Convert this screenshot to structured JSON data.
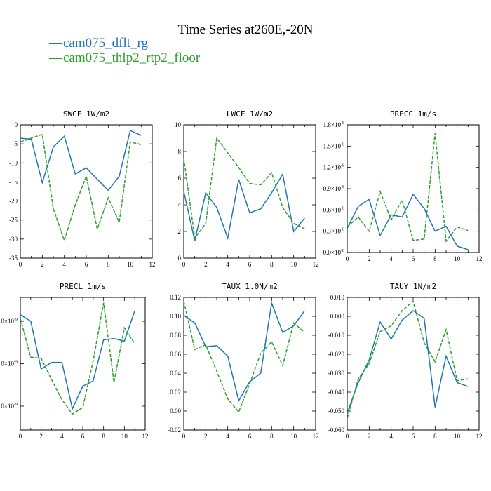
{
  "page": {
    "title": "Time Series at260E,-20N",
    "legend": [
      {
        "marker": "—",
        "label": "cam075_dflt_rg",
        "color": "#1f77b4",
        "dash": "solid"
      },
      {
        "marker": "—",
        "label": "cam075_thlp2_rtp2_floor",
        "color": "#2ca02c",
        "dash": "dashed"
      }
    ]
  },
  "chart_data": [
    {
      "type": "line",
      "title": "SWCF 1W/m2",
      "xlim": [
        0,
        12
      ],
      "ylim": [
        -35,
        0
      ],
      "xticks": [
        0,
        2,
        4,
        6,
        8,
        10,
        12
      ],
      "xtick_labels": [
        "0",
        "2",
        "4",
        "6",
        "8",
        "10",
        "12"
      ],
      "yticks": [
        0,
        -5,
        -10,
        -15,
        -20,
        -25,
        -30,
        -35
      ],
      "ytick_labels": [
        "0",
        "-5",
        "-10",
        "-15",
        "-20",
        "-25",
        "-30",
        "-35"
      ],
      "x": [
        0,
        1,
        2,
        3,
        4,
        5,
        6,
        7,
        8,
        9,
        10,
        11
      ],
      "series": [
        {
          "values": [
            -3.5,
            -3.8,
            -15.2,
            -5.8,
            -3.0,
            -12.9,
            -11.3,
            -14.3,
            -17.2,
            -13.5,
            -1.5,
            -2.8
          ]
        },
        {
          "values": [
            -4.5,
            -3.5,
            -2.5,
            -22.0,
            -30.4,
            -21.0,
            -13.5,
            -27.4,
            -19.2,
            -25.6,
            -4.5,
            -5.2
          ]
        }
      ]
    },
    {
      "type": "line",
      "title": "LWCF 1W/m2",
      "xlim": [
        0,
        12
      ],
      "ylim": [
        0,
        10
      ],
      "xticks": [
        0,
        2,
        4,
        6,
        8,
        10,
        12
      ],
      "xtick_labels": [
        "0",
        "2",
        "4",
        "6",
        "8",
        "10",
        "12"
      ],
      "yticks": [
        0,
        2,
        4,
        6,
        8,
        10
      ],
      "ytick_labels": [
        "0",
        "2",
        "4",
        "6",
        "8",
        "10"
      ],
      "x": [
        0,
        1,
        2,
        3,
        4,
        5,
        6,
        7,
        8,
        9,
        10,
        11
      ],
      "series": [
        {
          "values": [
            5.0,
            1.3,
            4.9,
            3.8,
            1.5,
            5.9,
            3.4,
            3.7,
            4.9,
            6.3,
            2.0,
            3.0
          ]
        },
        {
          "values": [
            7.5,
            1.5,
            2.6,
            9.0,
            7.9,
            6.8,
            5.6,
            5.5,
            6.4,
            3.8,
            2.6,
            2.2
          ]
        }
      ]
    },
    {
      "type": "line",
      "title": "PRECC 1m/s",
      "xlim": [
        0,
        12
      ],
      "ylim": [
        0,
        1.8
      ],
      "y_unit_exponent": "-8",
      "xticks": [
        0,
        2,
        4,
        6,
        8,
        10,
        12
      ],
      "xtick_labels": [
        "0",
        "2",
        "4",
        "6",
        "8",
        "10",
        "12"
      ],
      "yticks": [
        0,
        0.3,
        0.6,
        0.9,
        1.2,
        1.5,
        1.8
      ],
      "ytick_labels": [
        "0.0×10",
        "0.3×10",
        "0.6×10",
        "0.9×10",
        "1.2×10",
        "1.5×10",
        "1.8×10"
      ],
      "x": [
        0,
        1,
        2,
        3,
        4,
        5,
        6,
        7,
        8,
        9,
        10,
        11
      ],
      "series": [
        {
          "values": [
            0.34,
            0.65,
            0.75,
            0.24,
            0.53,
            0.5,
            0.82,
            0.62,
            0.3,
            0.37,
            0.09,
            0.04
          ]
        },
        {
          "values": [
            0.36,
            0.5,
            0.3,
            0.86,
            0.46,
            0.74,
            0.17,
            0.19,
            1.68,
            0.16,
            0.36,
            0.31
          ]
        }
      ]
    },
    {
      "type": "line",
      "title": "PRECL 1m/s",
      "xlim": [
        0,
        12
      ],
      "ylim": [
        0.0,
        1.0
      ],
      "xticks": [
        0,
        2,
        4,
        6,
        8,
        10,
        12
      ],
      "xtick_labels": [
        "0",
        "2",
        "4",
        "6",
        "8",
        "10",
        "12"
      ],
      "yticks": [
        0.18,
        0.5,
        0.82
      ],
      "ytick_labels": [
        "0×10",
        "0×10",
        "0×10"
      ],
      "y_unit_exponent": "-9",
      "x": [
        0,
        1,
        2,
        3,
        4,
        5,
        6,
        7,
        8,
        9,
        10,
        11
      ],
      "series": [
        {
          "values": [
            0.87,
            0.82,
            0.46,
            0.51,
            0.51,
            0.16,
            0.33,
            0.37,
            0.68,
            0.69,
            0.67,
            0.9
          ]
        },
        {
          "values": [
            0.84,
            0.55,
            0.54,
            0.38,
            0.23,
            0.12,
            0.17,
            0.52,
            0.96,
            0.36,
            0.77,
            0.65
          ]
        }
      ]
    },
    {
      "type": "line",
      "title": "TAUX 1.0N/m2",
      "xlim": [
        0,
        12
      ],
      "ylim": [
        -0.02,
        0.12
      ],
      "xticks": [
        0,
        2,
        4,
        6,
        8,
        10,
        12
      ],
      "xtick_labels": [
        "0",
        "2",
        "4",
        "6",
        "8",
        "10",
        "12"
      ],
      "yticks": [
        -0.02,
        0.0,
        0.02,
        0.04,
        0.06,
        0.08,
        0.1,
        0.12
      ],
      "ytick_labels": [
        "-0.02",
        "0.00",
        "0.02",
        "0.04",
        "0.06",
        "0.08",
        "0.10",
        "0.12"
      ],
      "x": [
        0,
        1,
        2,
        3,
        4,
        5,
        6,
        7,
        8,
        9,
        10,
        11
      ],
      "series": [
        {
          "values": [
            0.101,
            0.093,
            0.068,
            0.069,
            0.058,
            0.011,
            0.031,
            0.04,
            0.114,
            0.083,
            0.09,
            0.106
          ]
        },
        {
          "values": [
            0.116,
            0.065,
            0.07,
            0.042,
            0.013,
            -0.001,
            0.029,
            0.061,
            0.073,
            0.048,
            0.093,
            0.083
          ]
        }
      ]
    },
    {
      "type": "line",
      "title": "TAUY 1N/m2",
      "xlim": [
        0,
        12
      ],
      "ylim": [
        -0.06,
        0.01
      ],
      "xticks": [
        0,
        2,
        4,
        6,
        8,
        10,
        12
      ],
      "xtick_labels": [
        "0",
        "2",
        "4",
        "6",
        "8",
        "10",
        "12"
      ],
      "yticks": [
        0.01,
        0.0,
        -0.01,
        -0.02,
        -0.03,
        -0.04,
        -0.05,
        -0.06
      ],
      "ytick_labels": [
        "0.010",
        "0.000",
        "-0.010",
        "-0.020",
        "-0.030",
        "-0.040",
        "-0.050",
        "-0.060"
      ],
      "x": [
        0,
        1,
        2,
        3,
        4,
        5,
        6,
        7,
        8,
        9,
        10,
        11
      ],
      "series": [
        {
          "values": [
            -0.051,
            -0.035,
            -0.023,
            -0.003,
            -0.012,
            -0.002,
            0.003,
            -0.001,
            -0.048,
            -0.021,
            -0.035,
            -0.037
          ]
        },
        {
          "values": [
            -0.054,
            -0.033,
            -0.025,
            -0.008,
            -0.005,
            0.003,
            0.008,
            -0.014,
            -0.024,
            -0.007,
            -0.034,
            -0.033
          ]
        }
      ]
    }
  ]
}
